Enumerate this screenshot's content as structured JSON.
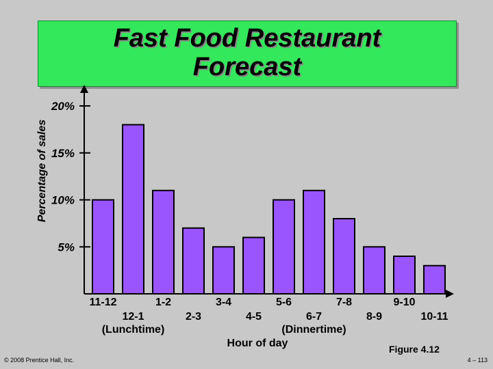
{
  "chart_data": {
    "type": "bar",
    "title_lines": [
      "Fast Food Restaurant",
      "Forecast"
    ],
    "ylabel": "Percentage of sales",
    "xlabel": "Hour of day",
    "categories": [
      "11-12",
      "12-1",
      "1-2",
      "2-3",
      "3-4",
      "4-5",
      "5-6",
      "6-7",
      "7-8",
      "8-9",
      "9-10",
      "10-11"
    ],
    "values": [
      10,
      18,
      11,
      7,
      5,
      6,
      10,
      11,
      8,
      5,
      4,
      3
    ],
    "ylim": [
      0,
      20
    ],
    "yticks": [
      {
        "value": 5,
        "label": "5%"
      },
      {
        "value": 10,
        "label": "10%"
      },
      {
        "value": 15,
        "label": "15%"
      },
      {
        "value": 20,
        "label": "20%"
      }
    ],
    "annotations": [
      {
        "text": "(Lunchtime)",
        "under_category": "12-1"
      },
      {
        "text": "(Dinnertime)",
        "under_category": "6-7"
      }
    ],
    "grid": false,
    "legend": "none"
  },
  "footer": {
    "figure": "Figure 4.12",
    "copyright": "© 2008 Prentice Hall, Inc.",
    "page": "4 – 113"
  }
}
